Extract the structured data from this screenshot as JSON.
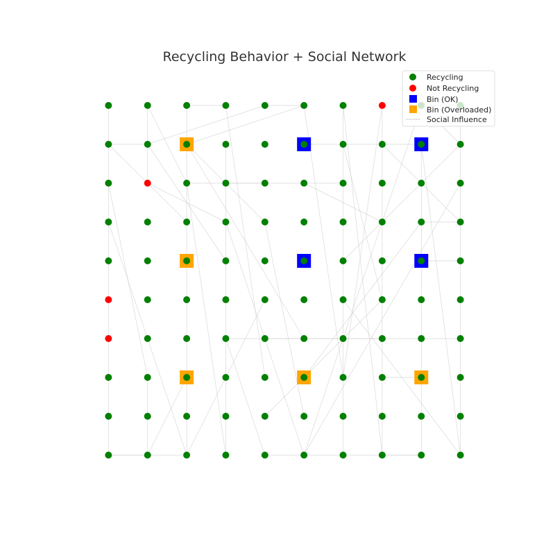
{
  "chart_data": {
    "type": "scatter",
    "title": "Recycling Behavior + Social Network",
    "xlabel": "",
    "ylabel": "",
    "xlim": [
      -1,
      10
    ],
    "ylim": [
      -1,
      10
    ],
    "grid": false,
    "legend": {
      "placement": "top-right",
      "entries": [
        {
          "label": "Recycling",
          "marker": "circle",
          "color": "#008000"
        },
        {
          "label": "Not Recycling",
          "marker": "circle",
          "color": "#ff0000"
        },
        {
          "label": "Bin (OK)",
          "marker": "square",
          "color": "#0000ff"
        },
        {
          "label": "Bin (Overloaded)",
          "marker": "square",
          "color": "#ffa500"
        },
        {
          "label": "Social Influence",
          "marker": "line",
          "color": "#cccccc"
        }
      ]
    },
    "colors": {
      "recycling": "#008000",
      "not_recycling": "#ff0000",
      "bin_ok": "#0000ff",
      "bin_overloaded": "#ffa500",
      "edge": "#cccccc"
    },
    "grid_size": [
      10,
      10
    ],
    "not_recycling": [
      [
        7,
        9
      ],
      [
        1,
        7
      ],
      [
        0,
        4
      ],
      [
        0,
        3
      ]
    ],
    "bins": [
      {
        "x": 2,
        "y": 8,
        "status": "overloaded"
      },
      {
        "x": 5,
        "y": 8,
        "status": "ok"
      },
      {
        "x": 8,
        "y": 8,
        "status": "ok"
      },
      {
        "x": 2,
        "y": 5,
        "status": "overloaded"
      },
      {
        "x": 5,
        "y": 5,
        "status": "ok"
      },
      {
        "x": 8,
        "y": 5,
        "status": "ok"
      },
      {
        "x": 2,
        "y": 2,
        "status": "overloaded"
      },
      {
        "x": 5,
        "y": 2,
        "status": "overloaded"
      },
      {
        "x": 8,
        "y": 2,
        "status": "overloaded"
      }
    ],
    "edges": [
      [
        [
          0,
          9
        ],
        [
          0,
          8
        ]
      ],
      [
        [
          0,
          8
        ],
        [
          0,
          7
        ]
      ],
      [
        [
          0,
          7
        ],
        [
          0,
          6
        ]
      ],
      [
        [
          0,
          6
        ],
        [
          0,
          5
        ]
      ],
      [
        [
          0,
          5
        ],
        [
          0,
          4
        ]
      ],
      [
        [
          0,
          4
        ],
        [
          0,
          3
        ]
      ],
      [
        [
          0,
          3
        ],
        [
          0,
          2
        ]
      ],
      [
        [
          0,
          2
        ],
        [
          0,
          1
        ]
      ],
      [
        [
          0,
          1
        ],
        [
          0,
          0
        ]
      ],
      [
        [
          0,
          8
        ],
        [
          1,
          8
        ]
      ],
      [
        [
          0,
          8
        ],
        [
          2,
          6
        ]
      ],
      [
        [
          0,
          7
        ],
        [
          1,
          2
        ]
      ],
      [
        [
          0,
          6
        ],
        [
          2,
          0
        ]
      ],
      [
        [
          0,
          0
        ],
        [
          1,
          0
        ]
      ],
      [
        [
          0,
          0
        ],
        [
          2,
          0
        ]
      ],
      [
        [
          1,
          9
        ],
        [
          1,
          7
        ]
      ],
      [
        [
          1,
          9
        ],
        [
          2,
          7
        ]
      ],
      [
        [
          1,
          8
        ],
        [
          4,
          9
        ]
      ],
      [
        [
          1,
          8
        ],
        [
          3,
          5
        ]
      ],
      [
        [
          1,
          7
        ],
        [
          3,
          6
        ]
      ],
      [
        [
          1,
          2
        ],
        [
          1,
          0
        ]
      ],
      [
        [
          1,
          0
        ],
        [
          2,
          2
        ]
      ],
      [
        [
          2,
          9
        ],
        [
          3,
          9
        ]
      ],
      [
        [
          2,
          9
        ],
        [
          2,
          0
        ]
      ],
      [
        [
          2,
          8
        ],
        [
          4,
          6
        ]
      ],
      [
        [
          2,
          8
        ],
        [
          5,
          3
        ]
      ],
      [
        [
          2,
          8
        ],
        [
          5,
          9
        ]
      ],
      [
        [
          2,
          7
        ],
        [
          4,
          7
        ]
      ],
      [
        [
          2,
          7
        ],
        [
          3,
          0
        ]
      ],
      [
        [
          2,
          0
        ],
        [
          4,
          4
        ]
      ],
      [
        [
          3,
          9
        ],
        [
          4,
          2
        ]
      ],
      [
        [
          3,
          8
        ],
        [
          3,
          0
        ]
      ],
      [
        [
          3,
          7
        ],
        [
          6,
          7
        ]
      ],
      [
        [
          3,
          6
        ],
        [
          5,
          0
        ]
      ],
      [
        [
          3,
          3
        ],
        [
          4,
          0
        ]
      ],
      [
        [
          3,
          3
        ],
        [
          6,
          3
        ]
      ],
      [
        [
          4,
          9
        ],
        [
          5,
          9
        ]
      ],
      [
        [
          4,
          6
        ],
        [
          5,
          1
        ]
      ],
      [
        [
          4,
          3
        ],
        [
          7,
          3
        ]
      ],
      [
        [
          4,
          1
        ],
        [
          7,
          4
        ]
      ],
      [
        [
          4,
          0
        ],
        [
          8,
          0
        ]
      ],
      [
        [
          5,
          9
        ],
        [
          6,
          2
        ]
      ],
      [
        [
          5,
          8
        ],
        [
          8,
          8
        ]
      ],
      [
        [
          5,
          7
        ],
        [
          7,
          6
        ]
      ],
      [
        [
          5,
          0
        ],
        [
          8,
          9
        ]
      ],
      [
        [
          5,
          0
        ],
        [
          9,
          7
        ]
      ],
      [
        [
          5,
          2
        ],
        [
          8,
          6
        ]
      ],
      [
        [
          6,
          9
        ],
        [
          7,
          0
        ]
      ],
      [
        [
          6,
          9
        ],
        [
          6,
          0
        ]
      ],
      [
        [
          6,
          8
        ],
        [
          7,
          4
        ]
      ],
      [
        [
          6,
          3
        ],
        [
          9,
          3
        ]
      ],
      [
        [
          6,
          4
        ],
        [
          9,
          0
        ]
      ],
      [
        [
          6,
          5
        ],
        [
          9,
          8
        ]
      ],
      [
        [
          6,
          2
        ],
        [
          7,
          9
        ]
      ],
      [
        [
          7,
          9
        ],
        [
          7,
          0
        ]
      ],
      [
        [
          7,
          8
        ],
        [
          9,
          6
        ]
      ],
      [
        [
          7,
          2
        ],
        [
          8,
          2
        ]
      ],
      [
        [
          7,
          0
        ],
        [
          8,
          0
        ]
      ],
      [
        [
          8,
          9
        ],
        [
          9,
          9
        ]
      ],
      [
        [
          8,
          8
        ],
        [
          8,
          0
        ]
      ],
      [
        [
          8,
          8
        ],
        [
          9,
          0
        ]
      ],
      [
        [
          8,
          6
        ],
        [
          9,
          6
        ]
      ],
      [
        [
          8,
          5
        ],
        [
          9,
          5
        ]
      ],
      [
        [
          9,
          9
        ],
        [
          9,
          0
        ]
      ],
      [
        [
          8,
          9
        ],
        [
          9,
          8
        ]
      ]
    ]
  }
}
